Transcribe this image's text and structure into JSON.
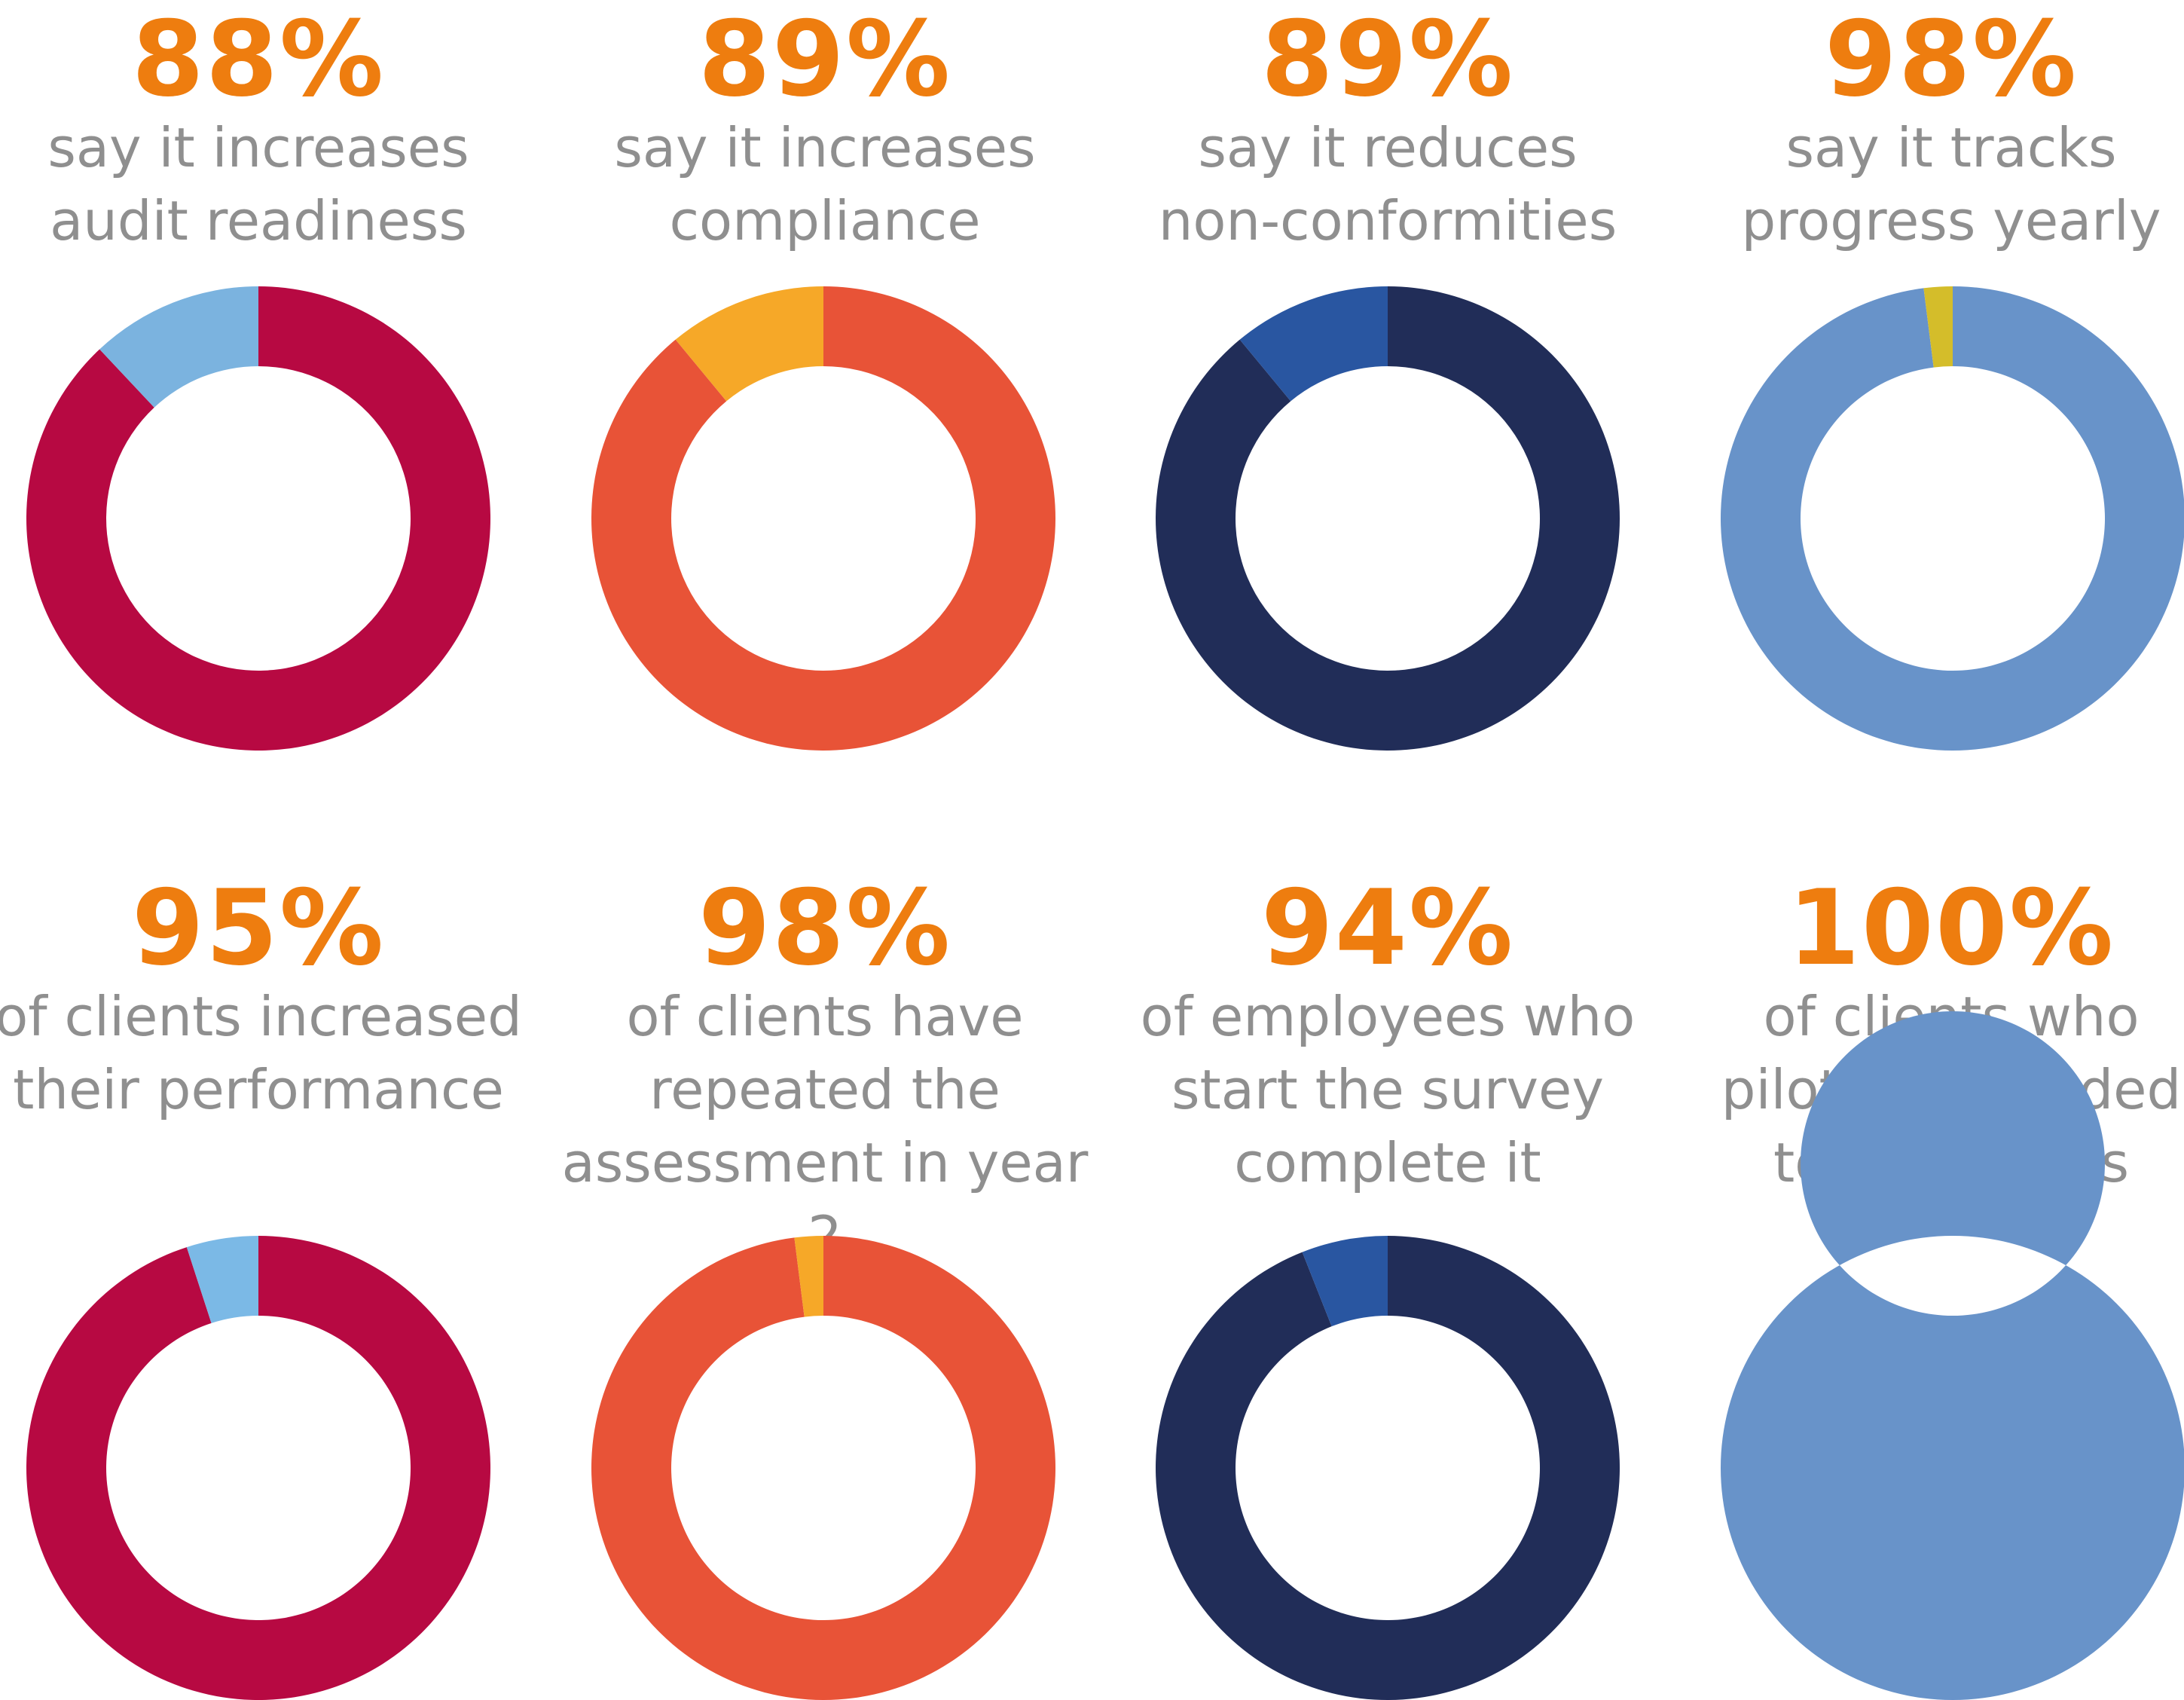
{
  "chart_data": [
    {
      "type": "pie",
      "value_label": "88%",
      "description": "say it increases\naudit readiness",
      "values": [
        88,
        12
      ],
      "colors": [
        "#b70942",
        "#7bb3df"
      ]
    },
    {
      "type": "pie",
      "value_label": "89%",
      "description": "say it increases\ncompliance",
      "values": [
        89,
        11
      ],
      "colors": [
        "#e85337",
        "#f6a828"
      ]
    },
    {
      "type": "pie",
      "value_label": "89%",
      "description": "say it reduces\nnon-conformities",
      "values": [
        89,
        11
      ],
      "colors": [
        "#212d58",
        "#2956a1"
      ]
    },
    {
      "type": "pie",
      "value_label": "98%",
      "description": "say it tracks\nprogress yearly",
      "values": [
        98,
        2
      ],
      "colors": [
        "#6893c9",
        "#d4bd2a"
      ]
    },
    {
      "type": "pie",
      "value_label": "95%",
      "description": "of clients increased\ntheir performance",
      "values": [
        95,
        5
      ],
      "colors": [
        "#b70942",
        "#7bb9e6"
      ]
    },
    {
      "type": "pie",
      "value_label": "98%",
      "description": "of clients have\nrepeated the\nassessment in year 2",
      "values": [
        98,
        2
      ],
      "colors": [
        "#e85337",
        "#f6a828"
      ]
    },
    {
      "type": "pie",
      "value_label": "94%",
      "description": "of employees who\nstart the survey\ncomplete it",
      "values": [
        94,
        6
      ],
      "colors": [
        "#212d58",
        "#2956a1"
      ]
    },
    {
      "type": "pie",
      "value_label": "100%",
      "description": "of clients who\npiloted extended\nto more sites",
      "values": [
        100,
        0
      ],
      "colors": [
        "#6893c9",
        "#6893c9"
      ]
    }
  ]
}
